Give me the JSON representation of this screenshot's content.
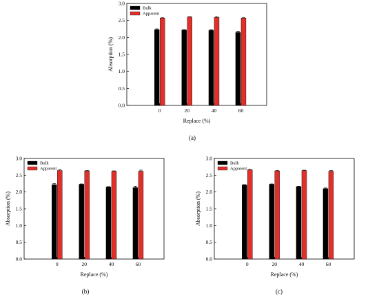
{
  "chart_data": [
    {
      "type": "bar",
      "panel_label": "(a)",
      "categories": [
        "0",
        "20",
        "40",
        "60"
      ],
      "series": [
        {
          "name": "Bulk",
          "color": "#000000",
          "values": [
            2.23,
            2.22,
            2.21,
            2.15
          ],
          "errors": [
            0.02,
            0.01,
            0.02,
            0.03
          ]
        },
        {
          "name": "Apparent",
          "color": "#e0302a",
          "values": [
            2.57,
            2.6,
            2.59,
            2.57
          ],
          "errors": [
            0.01,
            0.01,
            0.02,
            0.01
          ]
        }
      ],
      "xlabel": "Replace (%)",
      "ylabel": "Absorption (%)",
      "ylim": [
        0,
        3.0
      ],
      "yticks": [
        "0.0",
        "0.5",
        "1.0",
        "1.5",
        "2.0",
        "2.5",
        "3.0"
      ],
      "legend_position": "top-left",
      "grid": false
    },
    {
      "type": "bar",
      "panel_label": "(b)",
      "categories": [
        "0",
        "20",
        "40",
        "60"
      ],
      "series": [
        {
          "name": "Bulk",
          "color": "#000000",
          "values": [
            2.22,
            2.23,
            2.15,
            2.13
          ],
          "errors": [
            0.03,
            0.01,
            0.01,
            0.04
          ]
        },
        {
          "name": "Apparent",
          "color": "#e0302a",
          "values": [
            2.64,
            2.63,
            2.62,
            2.62
          ],
          "errors": [
            0.02,
            0.01,
            0.01,
            0.03
          ]
        }
      ],
      "xlabel": "Replace (%)",
      "ylabel": "Absorption (%)",
      "ylim": [
        0,
        3.0
      ],
      "yticks": [
        "0.0",
        "0.5",
        "1.0",
        "1.5",
        "2.0",
        "2.5",
        "3.0"
      ],
      "legend_position": "top-left",
      "grid": false
    },
    {
      "type": "bar",
      "panel_label": "(c)",
      "categories": [
        "0",
        "20",
        "40",
        "60"
      ],
      "series": [
        {
          "name": "Bulk",
          "color": "#000000",
          "values": [
            2.21,
            2.23,
            2.16,
            2.1
          ],
          "errors": [
            0.01,
            0.01,
            0.01,
            0.02
          ]
        },
        {
          "name": "Apparent",
          "color": "#e0302a",
          "values": [
            2.66,
            2.63,
            2.64,
            2.62
          ],
          "errors": [
            0.02,
            0.01,
            0.01,
            0.02
          ]
        }
      ],
      "xlabel": "Replace (%)",
      "ylabel": "Absorption (%)",
      "ylim": [
        0,
        3.0
      ],
      "yticks": [
        "0.0",
        "0.5",
        "1.0",
        "1.5",
        "2.0",
        "2.5",
        "3.0"
      ],
      "legend_position": "top-left",
      "grid": false
    }
  ]
}
